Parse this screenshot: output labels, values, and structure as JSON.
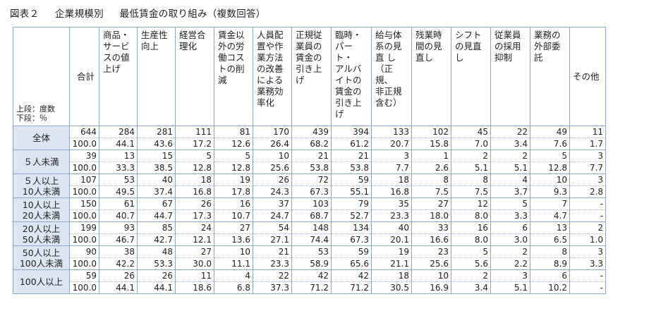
{
  "title": {
    "figure": "図表２",
    "category": "企業規模別",
    "main": "最低賃金の取り組み（複数回答）"
  },
  "legend": {
    "upper": "上段：度数",
    "lower": "下段：％"
  },
  "columns": [
    "合計",
    "商品・\nサービ\nスの値\n上げ",
    "生産性\n向上",
    "経営合\n理化",
    "賃金以\n外の労\n働コス\nトの削\n減",
    "人員配\n置や作\n業方法\nの改善\nによる\n業務効\n率化",
    "正規従\n業員の\n賃金の\n引き上\nげ",
    "臨時・\nパート・\nアルバ\nイトの\n賃金の\n引き上\nげ",
    "給与体\n系の見\n直 し\n（正規、\n非正規\n含む）",
    "残業時\n間の見\n直し",
    "シフト\nの見直\nし",
    "従業員\nの採用\n抑制",
    "業務の\n外部委\n託",
    "その他"
  ],
  "rows": [
    {
      "label": "全体",
      "counts": [
        "644",
        "284",
        "281",
        "111",
        "81",
        "170",
        "439",
        "394",
        "133",
        "102",
        "45",
        "22",
        "49",
        "11"
      ],
      "percents": [
        "100.0",
        "44.1",
        "43.6",
        "17.2",
        "12.6",
        "26.4",
        "68.2",
        "61.2",
        "20.7",
        "15.8",
        "7.0",
        "3.4",
        "7.6",
        "1.7"
      ]
    },
    {
      "label": "５人未満",
      "counts": [
        "39",
        "13",
        "15",
        "5",
        "5",
        "10",
        "21",
        "21",
        "3",
        "1",
        "2",
        "2",
        "5",
        "3"
      ],
      "percents": [
        "100.0",
        "33.3",
        "38.5",
        "12.8",
        "12.8",
        "25.6",
        "53.8",
        "53.8",
        "7.7",
        "2.6",
        "5.1",
        "5.1",
        "12.8",
        "7.7"
      ]
    },
    {
      "label": "５人以上\n10人未満",
      "counts": [
        "107",
        "53",
        "40",
        "18",
        "19",
        "26",
        "72",
        "59",
        "18",
        "8",
        "8",
        "4",
        "10",
        "3"
      ],
      "percents": [
        "100.0",
        "49.5",
        "37.4",
        "16.8",
        "17.8",
        "24.3",
        "67.3",
        "55.1",
        "16.8",
        "7.5",
        "7.5",
        "3.7",
        "9.3",
        "2.8"
      ]
    },
    {
      "label": "10人以上\n20人未満",
      "counts": [
        "150",
        "61",
        "67",
        "26",
        "16",
        "37",
        "103",
        "79",
        "35",
        "27",
        "12",
        "5",
        "7",
        "-"
      ],
      "percents": [
        "100.0",
        "40.7",
        "44.7",
        "17.3",
        "10.7",
        "24.7",
        "68.7",
        "52.7",
        "23.3",
        "18.0",
        "8.0",
        "3.3",
        "4.7",
        "-"
      ]
    },
    {
      "label": "20人以上\n50人未満",
      "counts": [
        "199",
        "93",
        "85",
        "24",
        "27",
        "54",
        "148",
        "134",
        "40",
        "33",
        "16",
        "6",
        "13",
        "2"
      ],
      "percents": [
        "100.0",
        "46.7",
        "42.7",
        "12.1",
        "13.6",
        "27.1",
        "74.4",
        "67.3",
        "20.1",
        "16.6",
        "8.0",
        "3.0",
        "6.5",
        "1.0"
      ]
    },
    {
      "label": "50人以上\n100人未満",
      "counts": [
        "90",
        "38",
        "48",
        "27",
        "10",
        "21",
        "53",
        "59",
        "19",
        "23",
        "5",
        "2",
        "8",
        "3"
      ],
      "percents": [
        "100.0",
        "42.2",
        "53.3",
        "30.0",
        "11.1",
        "23.3",
        "58.9",
        "65.6",
        "21.1",
        "25.6",
        "5.6",
        "2.2",
        "8.9",
        "3.3"
      ]
    },
    {
      "label": "100人以上",
      "counts": [
        "59",
        "26",
        "26",
        "11",
        "4",
        "22",
        "42",
        "42",
        "18",
        "10",
        "2",
        "3",
        "6",
        "-"
      ],
      "percents": [
        "100.0",
        "44.1",
        "44.1",
        "18.6",
        "6.8",
        "37.3",
        "71.2",
        "71.2",
        "30.5",
        "16.9",
        "3.4",
        "5.1",
        "10.2",
        "-"
      ]
    }
  ]
}
